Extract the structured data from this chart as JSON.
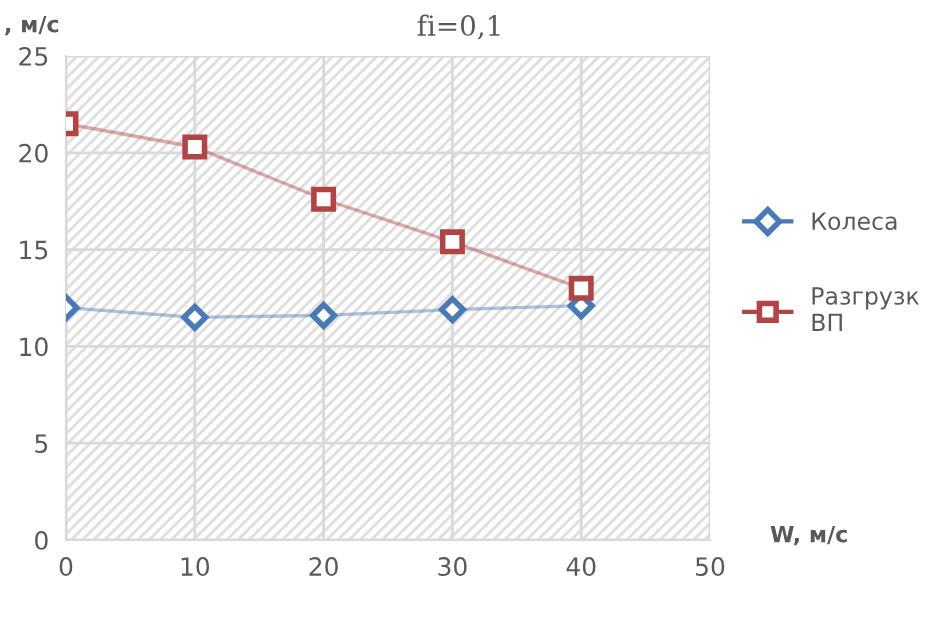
{
  "chart_data": {
    "type": "line",
    "title": "fi=0,1",
    "xlabel": "W, м/с",
    "ylabel": ", м/с",
    "x": [
      0,
      10,
      20,
      30,
      40
    ],
    "series": [
      {
        "name": "Колеса",
        "color": "#4a7ab5",
        "marker": "diamond",
        "values": [
          12.0,
          11.5,
          11.6,
          11.9,
          12.1
        ]
      },
      {
        "name": "Разгрузк\nВП",
        "color": "#b04545",
        "marker": "square",
        "values": [
          21.5,
          20.3,
          17.6,
          15.4,
          13.0
        ]
      }
    ],
    "xlim": [
      0,
      50
    ],
    "xticks": [
      0,
      10,
      20,
      30,
      40,
      50
    ],
    "ylim": [
      0,
      25
    ],
    "yticks": [
      0,
      5,
      10,
      15,
      20,
      25
    ],
    "grid": true,
    "legend": "right"
  }
}
